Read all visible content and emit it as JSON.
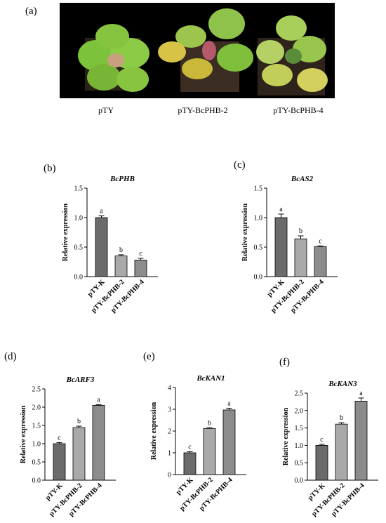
{
  "panel_labels": [
    "(a)",
    "(b)",
    "(c)",
    "(d)",
    "(e)",
    "(f)"
  ],
  "photo": {
    "captions": [
      "pTY",
      "pTY-BcPHB-2",
      "pTY-BcPHB-4"
    ]
  },
  "chart_data": [
    {
      "type": "bar",
      "title": "BcPHB",
      "ylabel": "Relative expression",
      "categories": [
        "pTY-K",
        "pTY-BcPHB-2",
        "pTY-BcPHB-4"
      ],
      "values": [
        1.0,
        0.35,
        0.28
      ],
      "errors": [
        0.03,
        0.02,
        0.03
      ],
      "letters": [
        "a",
        "b",
        "c"
      ],
      "ylim": [
        0,
        1.5
      ],
      "yticks": [
        "0.0",
        "0.5",
        "1.0",
        "1.5"
      ]
    },
    {
      "type": "bar",
      "title": "BcAS2",
      "ylabel": "Relative expression",
      "categories": [
        "pTY-K",
        "pTY-BcPHB-2",
        "pTY-BcPHB-4"
      ],
      "values": [
        1.0,
        0.64,
        0.51
      ],
      "errors": [
        0.06,
        0.05,
        0.01
      ],
      "letters": [
        "a",
        "b",
        "c"
      ],
      "ylim": [
        0,
        1.5
      ],
      "yticks": [
        "0.0",
        "0.5",
        "1.0",
        "1.5"
      ]
    },
    {
      "type": "bar",
      "title": "BcARF3",
      "ylabel": "Relative expression",
      "categories": [
        "pTY-K",
        "pTY-BcPHB-2",
        "pTY-BcPHB-4"
      ],
      "values": [
        1.0,
        1.44,
        2.05
      ],
      "errors": [
        0.03,
        0.04,
        0.02
      ],
      "letters": [
        "c",
        "b",
        "a"
      ],
      "ylim": [
        0,
        2.5
      ],
      "yticks": [
        "0.0",
        "0.5",
        "1.0",
        "1.5",
        "2.0",
        "2.5"
      ]
    },
    {
      "type": "bar",
      "title": "BcKAN1",
      "ylabel": "Relative expression",
      "categories": [
        "pTY-K",
        "pTY-BcPHB-2",
        "pTY-BcPHB-4"
      ],
      "values": [
        1.0,
        2.12,
        2.97
      ],
      "errors": [
        0.05,
        0.03,
        0.08
      ],
      "letters": [
        "c",
        "b",
        "a"
      ],
      "ylim": [
        0,
        4
      ],
      "yticks": [
        "0",
        "1",
        "2",
        "3",
        "4"
      ]
    },
    {
      "type": "bar",
      "title": "BcKAN3",
      "ylabel": "Relative expression",
      "categories": [
        "pTY-K",
        "pTY-BcPHB-2",
        "pTY-BcPHB-4"
      ],
      "values": [
        1.0,
        1.61,
        2.27
      ],
      "errors": [
        0.03,
        0.04,
        0.09
      ],
      "letters": [
        "c",
        "b",
        "a"
      ],
      "ylim": [
        0,
        2.5
      ],
      "yticks": [
        "0.0",
        "0.5",
        "1.0",
        "1.5",
        "2.0",
        "2.5"
      ]
    }
  ],
  "style": {
    "bar_colors": [
      "#6b6b6b",
      "#a9a9a9",
      "#8c8c8c"
    ],
    "axis_color": "#000000"
  }
}
